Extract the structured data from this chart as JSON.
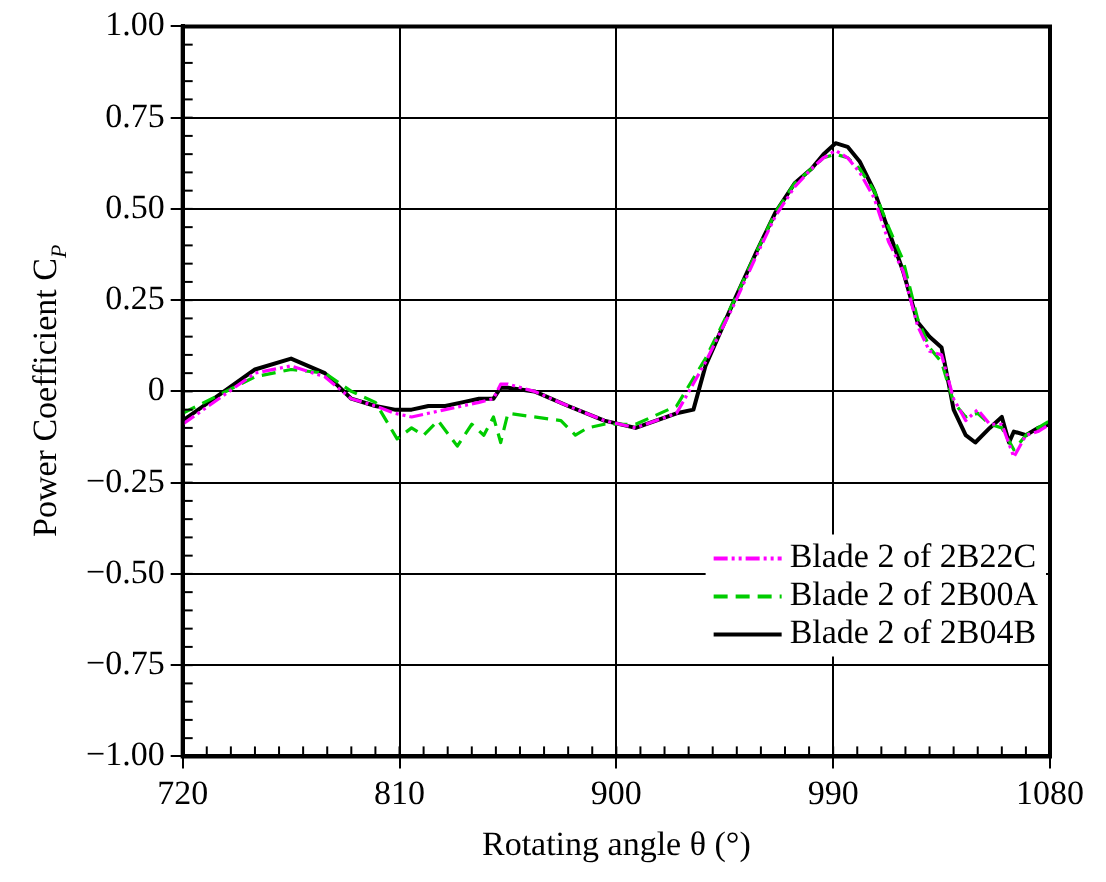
{
  "chart_data": {
    "type": "line",
    "xlabel": "Rotating angle θ (°)",
    "ylabel": "Power Coefficient C$_{P}$",
    "xlim": [
      720,
      1080
    ],
    "xticks": [
      720,
      810,
      900,
      990,
      1080
    ],
    "ylim": [
      -1,
      1
    ],
    "yticks": [
      {
        "value": -1,
        "label": "−1.00"
      },
      {
        "value": -0.75,
        "label": "−0.75"
      },
      {
        "value": -0.5,
        "label": "−0.50"
      },
      {
        "value": -0.25,
        "label": "−0.25"
      },
      {
        "value": 0,
        "label": "0"
      },
      {
        "value": 0.25,
        "label": "0.25"
      },
      {
        "value": 0.5,
        "label": "0.50"
      },
      {
        "value": 0.75,
        "label": "0.75"
      },
      {
        "value": 1,
        "label": "1.00"
      }
    ],
    "grid": true,
    "legend": "bottom right",
    "marker": "none",
    "series": [
      {
        "name": "Blade 2 of 2B22C",
        "color": "#ff00ff",
        "line_style": "dashdot",
        "x": [
          720,
          735,
          750,
          765,
          779,
          790,
          800,
          808,
          815,
          822,
          829,
          836,
          843,
          849,
          852,
          855,
          866,
          880,
          895,
          908,
          925,
          937,
          949,
          958,
          966,
          974,
          981,
          986,
          991,
          996,
          1001,
          1007,
          1013,
          1019,
          1025,
          1030,
          1035,
          1040,
          1045,
          1050,
          1055,
          1060,
          1065,
          1070,
          1075,
          1080
        ],
        "values": [
          -0.09,
          -0.02,
          0.05,
          0.07,
          0.04,
          -0.02,
          -0.04,
          -0.06,
          -0.07,
          -0.06,
          -0.05,
          -0.04,
          -0.03,
          -0.02,
          0.02,
          0.02,
          0.0,
          -0.04,
          -0.08,
          -0.1,
          -0.06,
          0.08,
          0.24,
          0.37,
          0.48,
          0.56,
          0.61,
          0.64,
          0.66,
          0.64,
          0.6,
          0.53,
          0.41,
          0.33,
          0.18,
          0.11,
          0.1,
          -0.02,
          -0.08,
          -0.05,
          -0.09,
          -0.09,
          -0.18,
          -0.12,
          -0.11,
          -0.09
        ]
      },
      {
        "name": "Blade 2 of 2B00A",
        "color": "#00cc00",
        "line_style": "dashed",
        "x": [
          720,
          735,
          750,
          765,
          779,
          790,
          800,
          809,
          815,
          820,
          826,
          834,
          840,
          845,
          849,
          852,
          855,
          866,
          877,
          883,
          888,
          895,
          908,
          925,
          937,
          949,
          958,
          966,
          974,
          981,
          986,
          991,
          996,
          1001,
          1007,
          1013,
          1019,
          1025,
          1030,
          1035,
          1040,
          1045,
          1050,
          1055,
          1060,
          1065,
          1070,
          1075,
          1080
        ],
        "values": [
          -0.06,
          -0.01,
          0.04,
          0.06,
          0.05,
          0.0,
          -0.03,
          -0.13,
          -0.1,
          -0.12,
          -0.08,
          -0.15,
          -0.09,
          -0.12,
          -0.07,
          -0.14,
          -0.06,
          -0.07,
          -0.08,
          -0.12,
          -0.1,
          -0.09,
          -0.09,
          -0.04,
          0.09,
          0.25,
          0.38,
          0.49,
          0.57,
          0.61,
          0.64,
          0.65,
          0.64,
          0.61,
          0.55,
          0.45,
          0.36,
          0.2,
          0.12,
          0.08,
          -0.03,
          -0.07,
          -0.06,
          -0.09,
          -0.1,
          -0.16,
          -0.12,
          -0.1,
          -0.08
        ]
      },
      {
        "name": "Blade 2 of 2B04B",
        "color": "#000000",
        "line_style": "solid",
        "x": [
          720,
          735,
          750,
          765,
          779,
          790,
          800,
          808,
          815,
          822,
          829,
          836,
          843,
          849,
          852,
          855,
          866,
          880,
          895,
          908,
          925,
          932,
          937,
          949,
          958,
          966,
          974,
          981,
          986,
          991,
          996,
          1001,
          1007,
          1013,
          1019,
          1025,
          1030,
          1035,
          1038,
          1040,
          1045,
          1049,
          1055,
          1060,
          1063,
          1065,
          1070,
          1075,
          1080
        ],
        "values": [
          -0.08,
          -0.01,
          0.06,
          0.09,
          0.05,
          -0.02,
          -0.04,
          -0.05,
          -0.05,
          -0.04,
          -0.04,
          -0.03,
          -0.02,
          -0.02,
          0.01,
          0.01,
          0.0,
          -0.04,
          -0.08,
          -0.1,
          -0.06,
          -0.05,
          0.07,
          0.25,
          0.38,
          0.49,
          0.57,
          0.61,
          0.65,
          0.68,
          0.67,
          0.63,
          0.55,
          0.44,
          0.33,
          0.19,
          0.15,
          0.12,
          0.02,
          -0.05,
          -0.12,
          -0.14,
          -0.1,
          -0.07,
          -0.14,
          -0.11,
          -0.12,
          -0.1,
          -0.09
        ]
      }
    ]
  }
}
